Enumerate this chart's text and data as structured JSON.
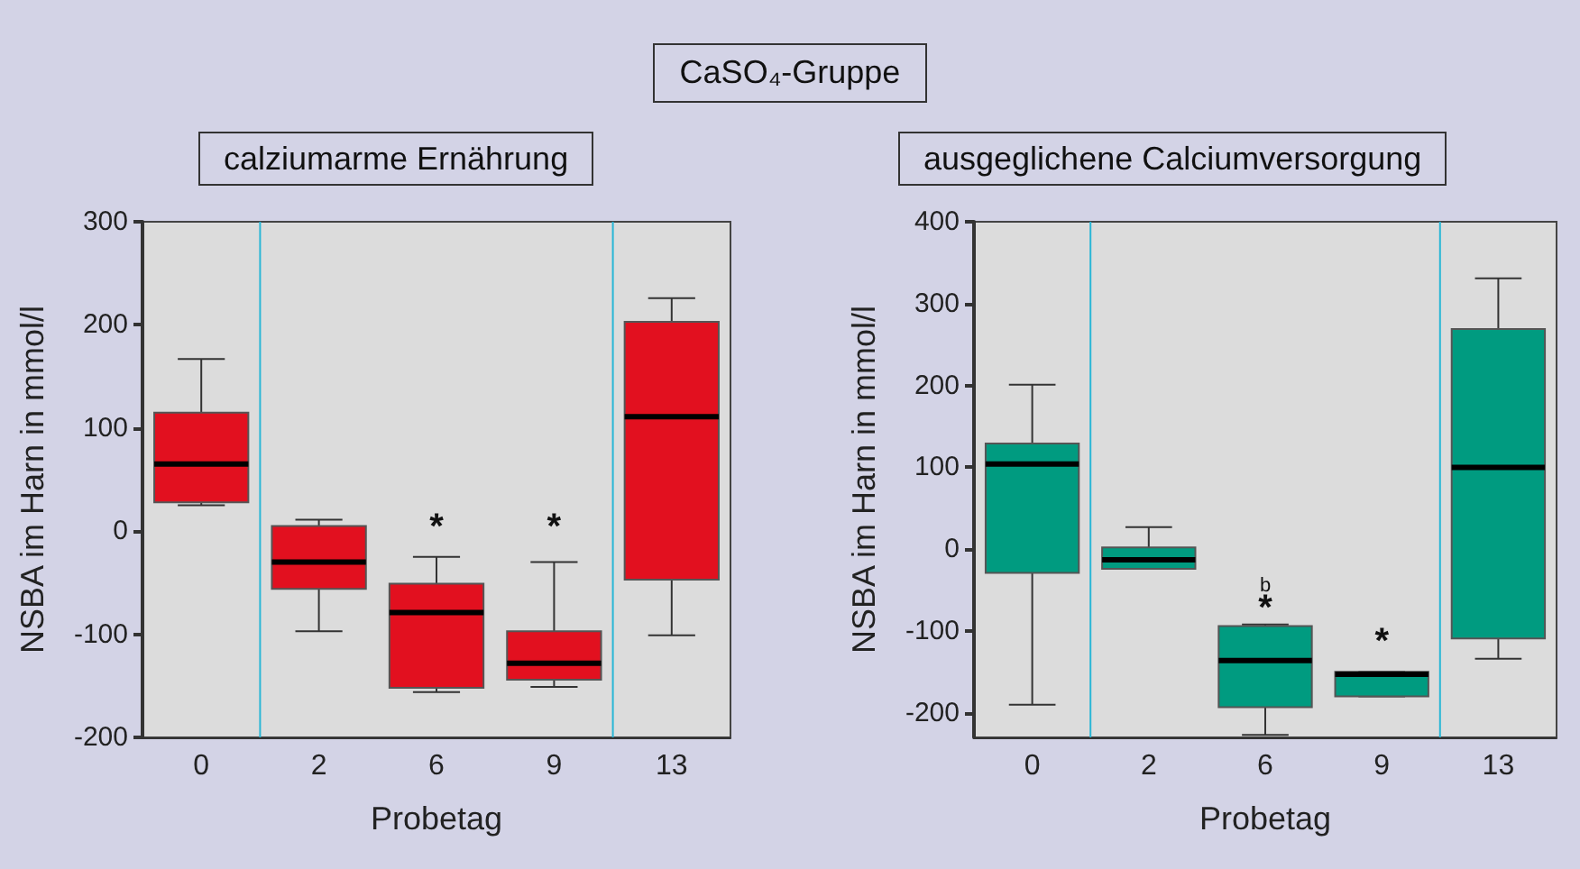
{
  "chart_data": [
    {
      "type": "box",
      "title": "calziumarme Ernährung",
      "xlabel": "Probetag",
      "ylabel": "NSBA im Harn in mmol/l",
      "annotations": [
        "CaSO₄-Gruppe",
        "*",
        "*"
      ],
      "categories": [
        "0",
        "2",
        "6",
        "9",
        "13"
      ],
      "series": [
        {
          "color": "#e2101f",
          "boxes": [
            {
              "low": 25,
              "q1": 28,
              "median": 65,
              "q3": 115,
              "high": 167
            },
            {
              "low": -97,
              "q1": -56,
              "median": -30,
              "q3": 5,
              "high": 11
            },
            {
              "low": -156,
              "q1": -152,
              "median": -79,
              "q3": -51,
              "high": -25
            },
            {
              "low": -151,
              "q1": -144,
              "median": -128,
              "q3": -97,
              "high": -30
            },
            {
              "low": -101,
              "q1": -47,
              "median": 111,
              "q3": 203,
              "high": 226
            }
          ]
        }
      ],
      "ylim": [
        -200,
        300
      ],
      "yticks": [
        -200,
        -100,
        0,
        100,
        200,
        300
      ],
      "grid": false
    },
    {
      "type": "box",
      "title": "ausgeglichene Calciumversorgung",
      "xlabel": "Probetag",
      "ylabel": "NSBA im Harn in mmol/l",
      "annotations": [
        "b",
        "*",
        "*"
      ],
      "categories": [
        "0",
        "2",
        "6",
        "9",
        "13"
      ],
      "series": [
        {
          "color": "#009b80",
          "boxes": [
            {
              "low": -190,
              "q1": -29,
              "median": 104,
              "q3": 129,
              "high": 201
            },
            {
              "low": -24,
              "q1": -24,
              "median": -13,
              "q3": 2,
              "high": 27
            },
            {
              "low": -227,
              "q1": -193,
              "median": -136,
              "q3": -94,
              "high": -92
            },
            {
              "low": -180,
              "q1": -180,
              "median": -153,
              "q3": -150,
              "high": -150
            },
            {
              "low": -134,
              "q1": -109,
              "median": 100,
              "q3": 269,
              "high": 331
            }
          ]
        }
      ],
      "ylim": [
        -230,
        400
      ],
      "yticks": [
        -200,
        -100,
        0,
        100,
        200,
        300,
        400
      ],
      "grid": false
    }
  ]
}
